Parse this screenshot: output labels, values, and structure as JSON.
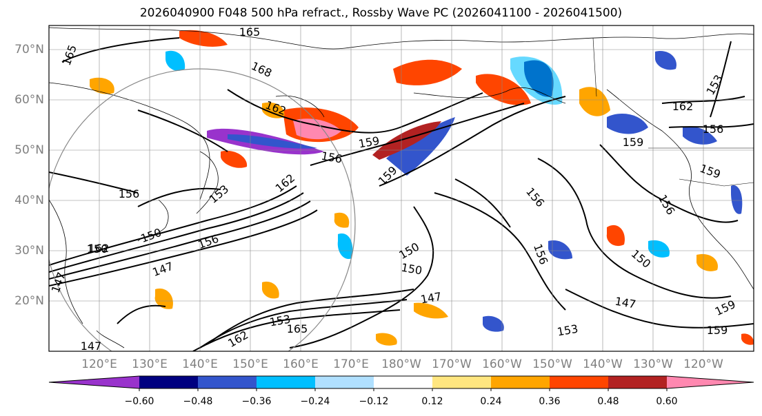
{
  "title": "2026040900 F048 500 hPa refract., Rossby Wave PC (2026041100 - 2026041500)",
  "map": {
    "lat_labels": [
      "70°N",
      "60°N",
      "50°N",
      "40°N",
      "30°N",
      "20°N"
    ],
    "lon_labels": [
      "120°E",
      "130°E",
      "140°E",
      "150°E",
      "160°E",
      "170°E",
      "180°W",
      "170°W",
      "160°W",
      "150°W",
      "140°W",
      "130°W",
      "120°W"
    ],
    "contour_labels": [
      "165",
      "165",
      "168",
      "162",
      "159",
      "156",
      "159",
      "156",
      "153",
      "162",
      "156",
      "150",
      "150",
      "147",
      "147",
      "153",
      "165",
      "162",
      "162",
      "156",
      "159",
      "156",
      "159",
      "156",
      "150",
      "153",
      "150",
      "156",
      "150",
      "147",
      "159",
      "162",
      "147",
      "147",
      "159",
      "153"
    ]
  },
  "colorbar": {
    "colors": [
      "#9933cc",
      "#000080",
      "#3355cc",
      "#00bfff",
      "#b0e0ff",
      "#ffffff",
      "#ffe680",
      "#ffa500",
      "#ff4500",
      "#b22222",
      "#ff88b0"
    ],
    "tick_labels": [
      "−0.60",
      "−0.48",
      "−0.36",
      "−0.24",
      "−0.12",
      "0.12",
      "0.24",
      "0.36",
      "0.48",
      "0.60"
    ]
  }
}
